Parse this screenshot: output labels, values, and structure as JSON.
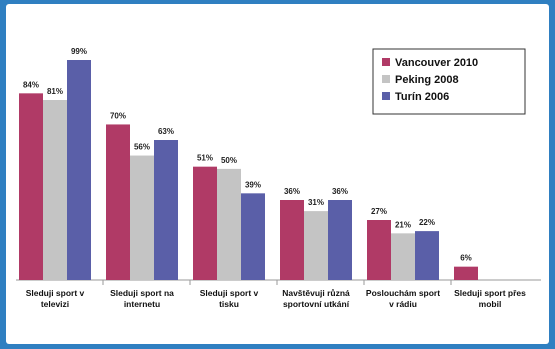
{
  "chart_data": {
    "type": "bar",
    "categories": [
      [
        "Sleduji sport v",
        "televizi"
      ],
      [
        "Sleduji sport na",
        "internetu"
      ],
      [
        "Sleduji sport v",
        "tisku"
      ],
      [
        "Navštěvuji různá",
        "sportovní utkání"
      ],
      [
        "Poslouchám sport",
        "v rádiu"
      ],
      [
        "Sleduji sport přes",
        "mobil"
      ]
    ],
    "series": [
      {
        "name": "Vancouver 2010",
        "color": "#b03a66",
        "values": [
          84,
          70,
          51,
          36,
          27,
          6
        ],
        "labels": [
          "84%",
          "70%",
          "51%",
          "36%",
          "27%",
          "6%"
        ]
      },
      {
        "name": "Peking 2008",
        "color": "#c4c4c4",
        "values": [
          81,
          56,
          50,
          31,
          21,
          null
        ],
        "labels": [
          "81%",
          "56%",
          "50%",
          "31%",
          "21%",
          ""
        ]
      },
      {
        "name": "Turín 2006",
        "color": "#5a5fa8",
        "values": [
          99,
          63,
          39,
          36,
          22,
          null
        ],
        "labels": [
          "99%",
          "63%",
          "39%",
          "36%",
          "22%",
          ""
        ]
      }
    ],
    "ylim": [
      0,
      100
    ],
    "grid": false,
    "legend_position": "top-right"
  }
}
